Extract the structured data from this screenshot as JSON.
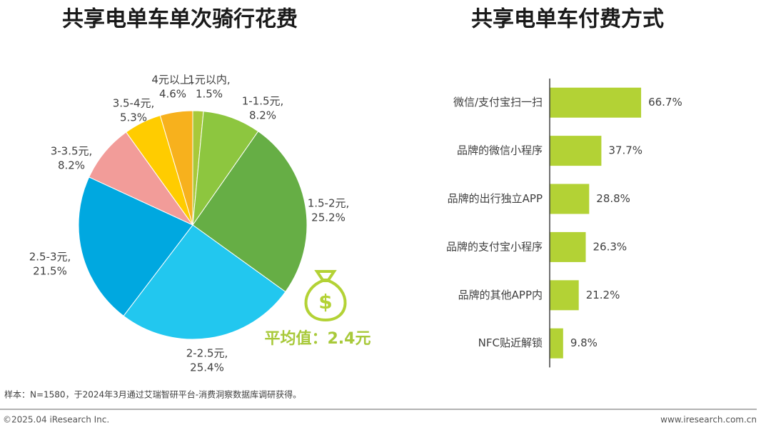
{
  "chart_data": [
    {
      "type": "pie",
      "title": "共享电单车单次骑行花费",
      "categories": [
        "1元以内,",
        "1-1.5元,",
        "1.5-2元,",
        "2-2.5元,",
        "2.5-3元,",
        "3-3.5元,",
        "3.5-4元,",
        "4元以上,"
      ],
      "values": [
        1.5,
        8.2,
        25.2,
        25.4,
        21.5,
        8.2,
        5.3,
        4.6
      ],
      "value_labels": [
        "1.5%",
        "8.2%",
        "25.2%",
        "25.4%",
        "21.5%",
        "8.2%",
        "5.3%",
        "4.6%"
      ],
      "colors": [
        "#a8c93a",
        "#8dc63f",
        "#66ae45",
        "#22c7ef",
        "#00a8e0",
        "#f29c99",
        "#ffcc00",
        "#f7b11d"
      ],
      "annotation": "平均值：2.4元"
    },
    {
      "type": "hbar",
      "title": "共享电单车付费方式",
      "categories": [
        "微信/支付宝扫一扫",
        "品牌的微信小程序",
        "品牌的出行独立APP",
        "品牌的支付宝小程序",
        "品牌的其他APP内",
        "NFC贴近解锁"
      ],
      "values": [
        66.7,
        37.7,
        28.8,
        26.3,
        21.2,
        9.8
      ],
      "value_labels": [
        "66.7%",
        "37.7%",
        "28.8%",
        "26.3%",
        "21.2%",
        "9.8%"
      ],
      "color": "#b3d235",
      "xlim": [
        0,
        100
      ]
    }
  ],
  "source_note": "样本：N=1580，于2024年3月通过艾瑞智研平台-消费洞察数据库调研获得。",
  "copyright": "©2025.04 iResearch Inc.",
  "website": "www.iresearch.com.cn"
}
